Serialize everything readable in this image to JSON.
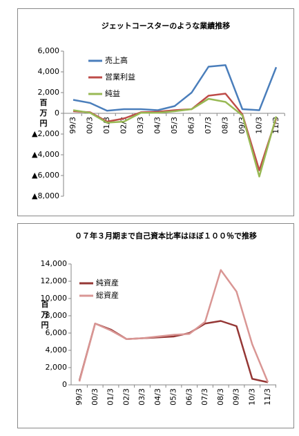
{
  "chart_data": [
    {
      "type": "line",
      "title": "ジェットコースターのような業績推移",
      "y_label": "百万円",
      "categories": [
        "99/3",
        "00/3",
        "01/3",
        "02/3",
        "03/3",
        "04/3",
        "05/3",
        "06/3",
        "07/3",
        "08/3",
        "09/3",
        "10/3",
        "11/3"
      ],
      "series": [
        {
          "name": "売上高",
          "color": "#4a7ebb",
          "values": [
            1300,
            1000,
            250,
            400,
            400,
            300,
            700,
            2000,
            4500,
            4650,
            400,
            300,
            4450
          ]
        },
        {
          "name": "営業利益",
          "color": "#be4b48",
          "values": [
            200,
            100,
            -800,
            -500,
            100,
            150,
            300,
            400,
            1700,
            1900,
            -100,
            -5500,
            -500
          ]
        },
        {
          "name": "純益",
          "color": "#98b954",
          "values": [
            300,
            50,
            -900,
            -800,
            50,
            50,
            200,
            400,
            1400,
            1100,
            -200,
            -6100,
            -300
          ]
        }
      ],
      "ylim": [
        -8000,
        6000
      ],
      "yticks": [
        {
          "value": 6000,
          "label": "6,000"
        },
        {
          "value": 4000,
          "label": "4,000"
        },
        {
          "value": 2000,
          "label": "2,000"
        },
        0,
        {
          "value": -2000,
          "label": "▲2,000"
        },
        {
          "value": -4000,
          "label": "▲4,000"
        },
        {
          "value": -6000,
          "label": "▲6,000"
        },
        {
          "value": -8000,
          "label": "▲8,000"
        }
      ],
      "grid": false,
      "legend": "top-left"
    },
    {
      "type": "line",
      "title": "０７年３月期まで自己資本比率はほぼ１００％で推移",
      "y_label": "百万円",
      "categories": [
        "99/3",
        "00/3",
        "01/3",
        "02/3",
        "03/3",
        "04/3",
        "05/3",
        "06/3",
        "07/3",
        "08/3",
        "09/3",
        "10/3",
        "11/3"
      ],
      "series": [
        {
          "name": "純資産",
          "color": "#953735",
          "values": [
            500,
            7100,
            6400,
            5300,
            5400,
            5500,
            5600,
            6000,
            7100,
            7400,
            6800,
            700,
            300
          ]
        },
        {
          "name": "総資産",
          "color": "#d99694",
          "values": [
            400,
            7100,
            6300,
            5300,
            5400,
            5600,
            5800,
            5900,
            7300,
            13300,
            10800,
            4700,
            300
          ]
        }
      ],
      "ylim": [
        0,
        14000
      ],
      "yticks": [
        0,
        {
          "value": 2000,
          "label": "2,000"
        },
        {
          "value": 4000,
          "label": "4,000"
        },
        {
          "value": 6000,
          "label": "6,000"
        },
        {
          "value": 8000,
          "label": "8,000"
        },
        {
          "value": 10000,
          "label": "10,000"
        },
        {
          "value": 12000,
          "label": "12,000"
        },
        {
          "value": 14000,
          "label": "14,000"
        }
      ],
      "grid": false,
      "legend": "top-left"
    }
  ]
}
